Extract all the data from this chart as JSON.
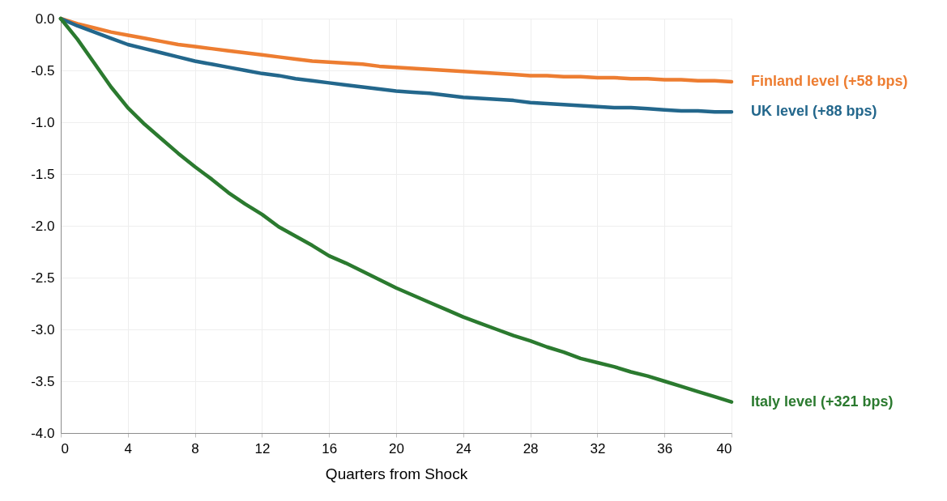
{
  "chart_data": {
    "type": "line",
    "xlabel": "Quarters from Shock",
    "x": [
      0,
      1,
      2,
      3,
      4,
      5,
      6,
      7,
      8,
      9,
      10,
      11,
      12,
      13,
      14,
      15,
      16,
      17,
      18,
      19,
      20,
      21,
      22,
      23,
      24,
      25,
      26,
      27,
      28,
      29,
      30,
      31,
      32,
      33,
      34,
      35,
      36,
      37,
      38,
      39,
      40
    ],
    "series": [
      {
        "name": "Finland level (+58 bps)",
        "color": "#ed7d31",
        "values": [
          0,
          -0.05,
          -0.09,
          -0.13,
          -0.16,
          -0.19,
          -0.22,
          -0.25,
          -0.27,
          -0.29,
          -0.31,
          -0.33,
          -0.35,
          -0.37,
          -0.39,
          -0.41,
          -0.42,
          -0.43,
          -0.44,
          -0.46,
          -0.47,
          -0.48,
          -0.49,
          -0.5,
          -0.51,
          -0.52,
          -0.53,
          -0.54,
          -0.55,
          -0.55,
          -0.56,
          -0.56,
          -0.57,
          -0.57,
          -0.58,
          -0.58,
          -0.59,
          -0.59,
          -0.6,
          -0.6,
          -0.61
        ]
      },
      {
        "name": "UK level (+88 bps)",
        "color": "#23678c",
        "values": [
          0,
          -0.07,
          -0.13,
          -0.19,
          -0.25,
          -0.29,
          -0.33,
          -0.37,
          -0.41,
          -0.44,
          -0.47,
          -0.5,
          -0.53,
          -0.55,
          -0.58,
          -0.6,
          -0.62,
          -0.64,
          -0.66,
          -0.68,
          -0.7,
          -0.71,
          -0.72,
          -0.74,
          -0.76,
          -0.77,
          -0.78,
          -0.79,
          -0.81,
          -0.82,
          -0.83,
          -0.84,
          -0.85,
          -0.86,
          -0.86,
          -0.87,
          -0.88,
          -0.89,
          -0.89,
          -0.9,
          -0.9
        ]
      },
      {
        "name": "Italy level (+321 bps)",
        "color": "#2b7a2f",
        "values": [
          0,
          -0.2,
          -0.43,
          -0.66,
          -0.86,
          -1.02,
          -1.16,
          -1.3,
          -1.43,
          -1.55,
          -1.68,
          -1.79,
          -1.89,
          -2.01,
          -2.1,
          -2.19,
          -2.29,
          -2.36,
          -2.44,
          -2.52,
          -2.6,
          -2.67,
          -2.74,
          -2.81,
          -2.88,
          -2.94,
          -3.0,
          -3.06,
          -3.11,
          -3.17,
          -3.22,
          -3.28,
          -3.32,
          -3.36,
          -3.41,
          -3.45,
          -3.5,
          -3.55,
          -3.6,
          -3.65,
          -3.7
        ]
      }
    ],
    "xlim": [
      0,
      40
    ],
    "xticks": [
      0,
      4,
      8,
      12,
      16,
      20,
      24,
      28,
      32,
      36,
      40
    ],
    "ylim": [
      -4.0,
      0.0
    ],
    "yticks": [
      {
        "value": 0,
        "label": "0.0"
      },
      {
        "value": -0.5,
        "label": "-0.5"
      },
      {
        "value": -1,
        "label": "-1.0"
      },
      {
        "value": -1.5,
        "label": "-1.5"
      },
      {
        "value": -2,
        "label": "-2.0"
      },
      {
        "value": -2.5,
        "label": "-2.5"
      },
      {
        "value": -3,
        "label": "-3.0"
      },
      {
        "value": -3.5,
        "label": "-3.5"
      },
      {
        "value": -4,
        "label": "-4.0"
      }
    ],
    "grid": true,
    "marker": "none",
    "line_style": "solid"
  }
}
